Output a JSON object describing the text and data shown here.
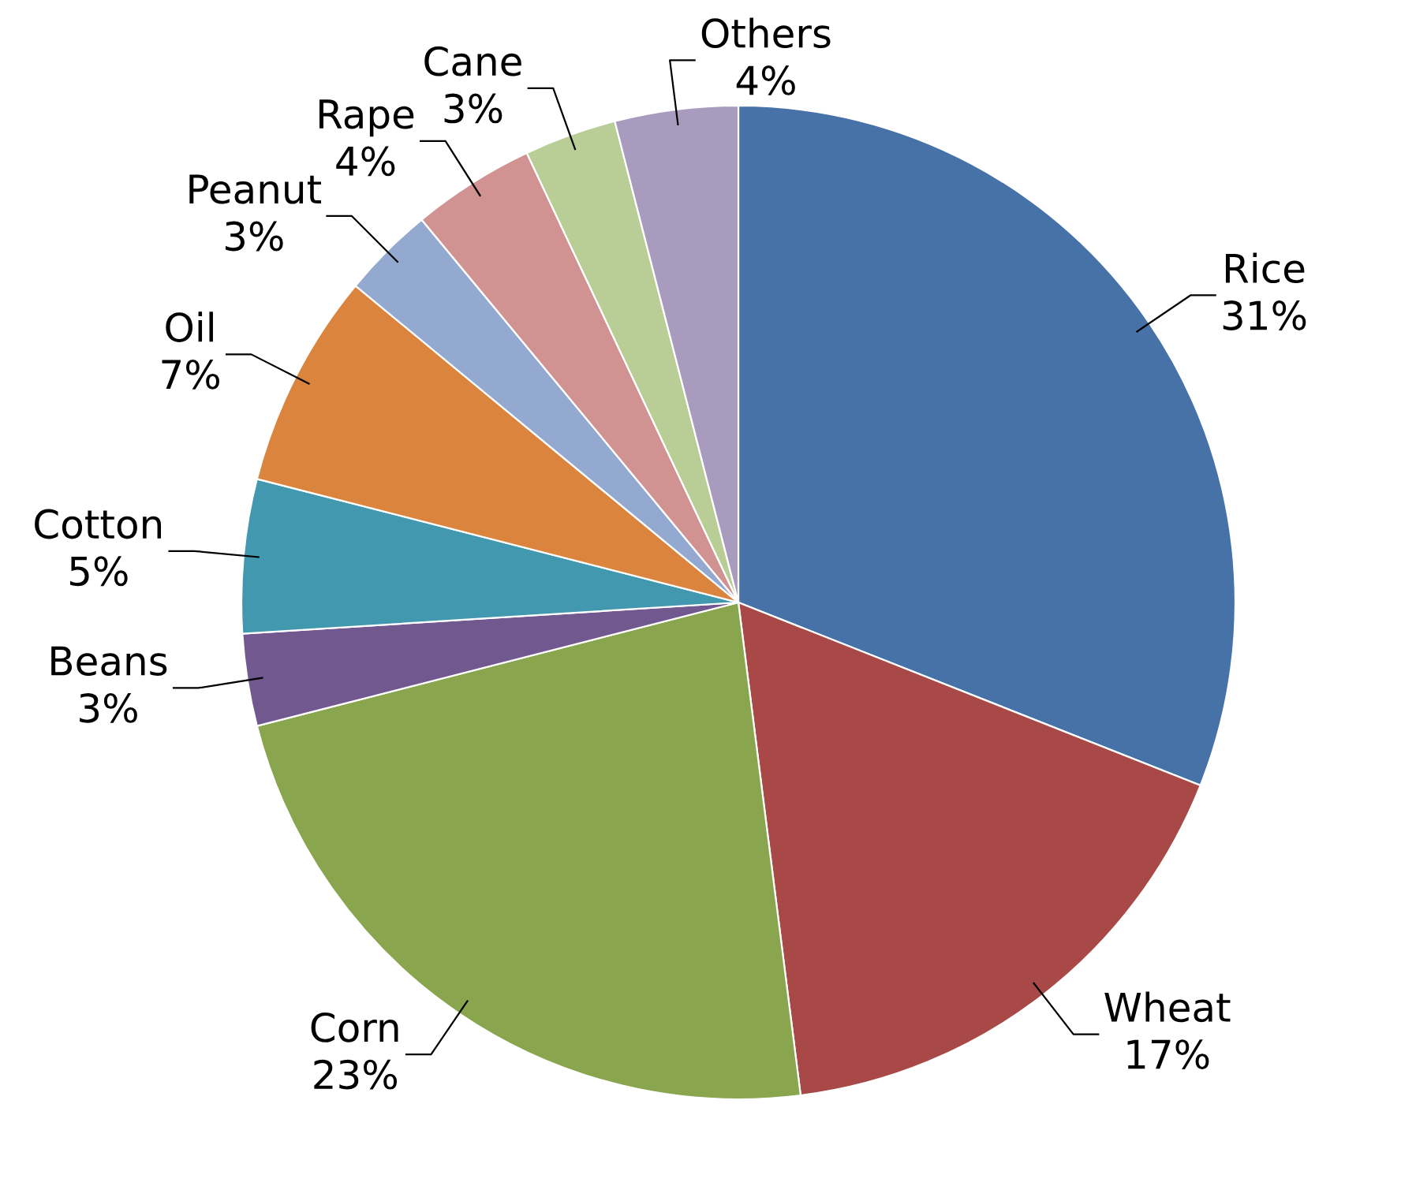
{
  "chart_data": {
    "type": "pie",
    "categories": [
      "Rice",
      "Wheat",
      "Corn",
      "Beans",
      "Cotton",
      "Oil",
      "Peanut",
      "Rape",
      "Cane",
      "Others"
    ],
    "values": [
      31,
      17,
      23,
      3,
      5,
      7,
      3,
      4,
      3,
      4
    ],
    "value_labels": [
      "31%",
      "17%",
      "23%",
      "3%",
      "5%",
      "7%",
      "3%",
      "4%",
      "3%",
      "4%"
    ],
    "colors": [
      "#4672a7",
      "#a84947",
      "#89a54e",
      "#71588f",
      "#4198af",
      "#db843d",
      "#93a9cf",
      "#d19392",
      "#b9cd96",
      "#a99bbd"
    ],
    "legend": false
  }
}
